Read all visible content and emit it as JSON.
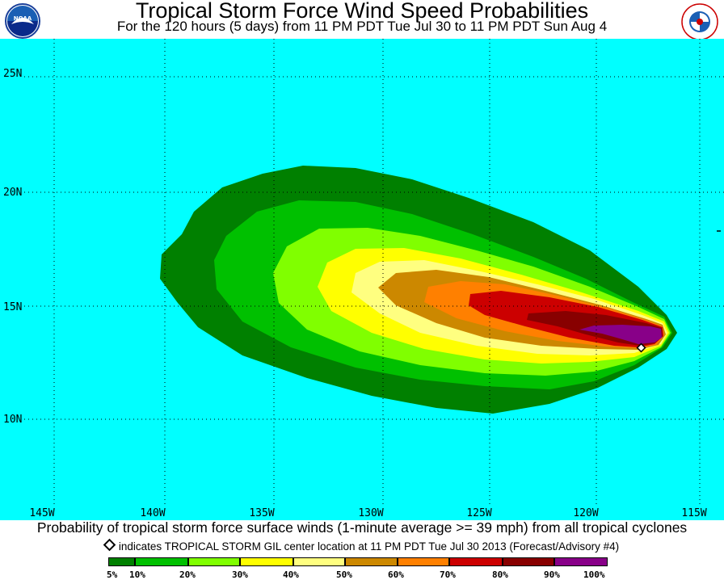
{
  "header": {
    "title": "Tropical Storm Force Wind Speed Probabilities",
    "subtitle": "For the 120 hours (5 days) from 11 PM PDT Tue Jul 30 to 11 PM PDT Sun Aug 4",
    "logo_left": "NOAA",
    "logo_right": "NATIONAL WEATHER SERVICE"
  },
  "map": {
    "ocean_color": "#00ffff",
    "longitude_labels": [
      "145W",
      "140W",
      "135W",
      "130W",
      "125W",
      "120W",
      "115W"
    ],
    "latitude_labels": [
      "25N",
      "20N",
      "15N",
      "10N"
    ],
    "storm_center": {
      "lon": -117.7,
      "lat": 13.2,
      "name": "TROPICAL STORM GIL"
    },
    "probability_bands": [
      {
        "label": "5%",
        "color": "#008000"
      },
      {
        "label": "10%",
        "color": "#00c000"
      },
      {
        "label": "20%",
        "color": "#80ff00"
      },
      {
        "label": "30%",
        "color": "#ffff00"
      },
      {
        "label": "40%",
        "color": "#ffff80"
      },
      {
        "label": "50%",
        "color": "#cc8800"
      },
      {
        "label": "60%",
        "color": "#ff8000"
      },
      {
        "label": "70%",
        "color": "#cc0000"
      },
      {
        "label": "80%",
        "color": "#880000"
      },
      {
        "label": "90%",
        "color": "#880088"
      }
    ]
  },
  "caption": "Probability of tropical storm force surface winds (1-minute average >= 39 mph) from all tropical cyclones",
  "note": "indicates TROPICAL STORM GIL center location at 11 PM PDT Tue Jul 30 2013 (Forecast/Advisory #4)",
  "legend": {
    "labels": [
      "5%",
      "10%",
      "20%",
      "30%",
      "40%",
      "50%",
      "60%",
      "70%",
      "80%",
      "90%",
      "100%"
    ]
  }
}
